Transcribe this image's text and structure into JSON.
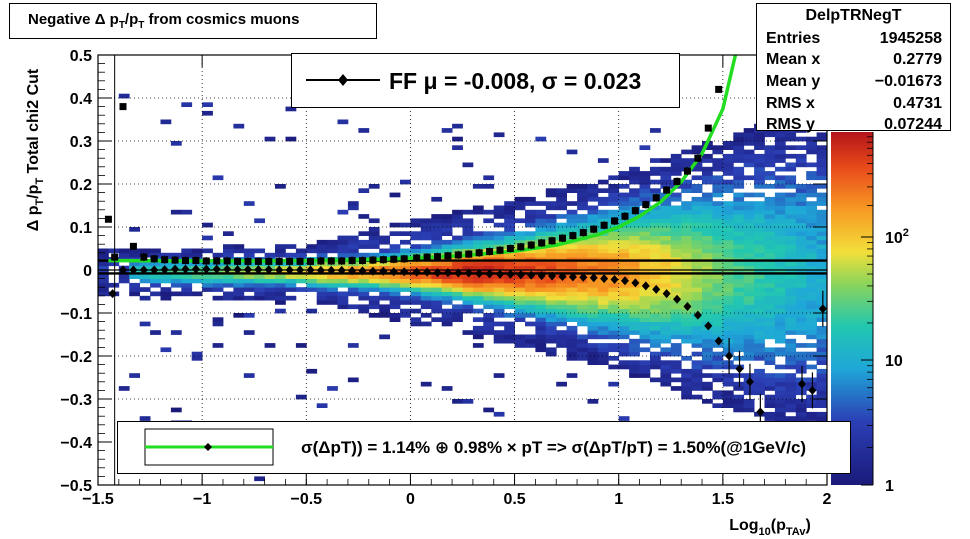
{
  "title": "Negative Δ p_T/p_T from cosmics muons",
  "stats": {
    "name": "DelpTRNegT",
    "rows": [
      {
        "key": "Entries",
        "value": "1945258"
      },
      {
        "key": "Mean x",
        "value": "0.2779"
      },
      {
        "key": "Mean y",
        "value": "−0.01673"
      },
      {
        "key": "RMS x",
        "value": "0.4731"
      },
      {
        "key": "RMS y",
        "value": "0.07244"
      }
    ]
  },
  "legend_top": {
    "text": "FF μ = -0.008, σ =   0.023"
  },
  "legend_bottom": {
    "text": "σ(ΔpT)) =  1.14% ⊕  0.98% × pT => σ(ΔpT/pT) =  1.50%(@1GeV/c)"
  },
  "colors": {
    "fit_line": "#22dd22",
    "markers": "#000000"
  },
  "chart_data": {
    "type": "heatmap",
    "title": "Negative Δ p_T/p_T from cosmics muons",
    "xlabel": "Log10(pTAv)",
    "ylabel": "Δ pT/pT  Total chi2 Cut",
    "xlim": [
      -1.5,
      2.0
    ],
    "ylim": [
      -0.5,
      0.5
    ],
    "x_ticks": [
      "−1.5",
      "−1",
      "−0.5",
      "0",
      "0.5",
      "1",
      "1.5",
      "2"
    ],
    "y_ticks": [
      "−0.5",
      "−0.4",
      "−0.3",
      "−0.2",
      "−0.1",
      "0",
      "0.1",
      "0.2",
      "0.3",
      "0.4",
      "0.5"
    ],
    "z_scale": "log",
    "z_ticks": [
      "1",
      "10",
      "10^2"
    ],
    "grid": true,
    "series": [
      {
        "kind": "points",
        "x": [
          -1.45,
          -1.42,
          -1.38,
          -1.33,
          -1.28,
          -1.23,
          -1.18,
          -1.13,
          -1.08,
          -1.03,
          -0.98,
          -0.93,
          -0.88,
          -0.83,
          -0.78,
          -0.73,
          -0.68,
          -0.63,
          -0.58,
          -0.53,
          -0.48,
          -0.43,
          -0.38,
          -0.33,
          -0.28,
          -0.23,
          -0.18,
          -0.13,
          -0.08,
          -0.03,
          0.03,
          0.08,
          0.13,
          0.18,
          0.23,
          0.28,
          0.33,
          0.38,
          0.43,
          0.48,
          0.53,
          0.58,
          0.63,
          0.68,
          0.73,
          0.78,
          0.83,
          0.88,
          0.93,
          0.98,
          1.03,
          1.08,
          1.13,
          1.18,
          1.23,
          1.28,
          1.33,
          1.38,
          1.43,
          1.48
        ],
        "y": [
          0.118,
          0.03,
          0.38,
          0.055,
          0.03,
          0.026,
          0.024,
          0.023,
          0.022,
          0.022,
          0.021,
          0.021,
          0.021,
          0.02,
          0.02,
          0.02,
          0.02,
          0.02,
          0.02,
          0.02,
          0.02,
          0.021,
          0.021,
          0.021,
          0.022,
          0.022,
          0.023,
          0.024,
          0.025,
          0.026,
          0.028,
          0.03,
          0.031,
          0.033,
          0.035,
          0.037,
          0.04,
          0.043,
          0.046,
          0.05,
          0.054,
          0.058,
          0.063,
          0.068,
          0.074,
          0.08,
          0.087,
          0.095,
          0.104,
          0.114,
          0.125,
          0.138,
          0.152,
          0.168,
          0.186,
          0.206,
          0.23,
          0.26,
          0.33,
          0.42
        ]
      },
      {
        "kind": "points",
        "x": [
          -1.43,
          -1.38,
          -1.33,
          -1.28,
          -1.23,
          -1.18,
          -1.13,
          -1.08,
          -1.03,
          -0.98,
          -0.93,
          -0.88,
          -0.83,
          -0.78,
          -0.73,
          -0.68,
          -0.63,
          -0.58,
          -0.53,
          -0.48,
          -0.43,
          -0.38,
          -0.33,
          -0.28,
          -0.23,
          -0.18,
          -0.13,
          -0.08,
          -0.03,
          0.03,
          0.08,
          0.13,
          0.18,
          0.23,
          0.28,
          0.33,
          0.38,
          0.43,
          0.48,
          0.53,
          0.58,
          0.63,
          0.68,
          0.73,
          0.78,
          0.83,
          0.88,
          0.93,
          0.98,
          1.03,
          1.08,
          1.13,
          1.18,
          1.23,
          1.28,
          1.33,
          1.38,
          1.43,
          1.48,
          1.53,
          1.58,
          1.63,
          1.68,
          1.88,
          1.93,
          1.98
        ],
        "y": [
          -0.055,
          0.0,
          0.0,
          0.0,
          0.0,
          0.001,
          0.002,
          0.002,
          0.002,
          0.002,
          0.002,
          0.002,
          0.001,
          0.001,
          0.001,
          0.001,
          0.0,
          0.0,
          0.0,
          0.0,
          -0.001,
          -0.001,
          -0.001,
          -0.002,
          -0.002,
          -0.003,
          -0.003,
          -0.004,
          -0.004,
          -0.005,
          -0.005,
          -0.006,
          -0.006,
          -0.007,
          -0.007,
          -0.008,
          -0.009,
          -0.01,
          -0.01,
          -0.011,
          -0.012,
          -0.013,
          -0.014,
          -0.015,
          -0.016,
          -0.017,
          -0.018,
          -0.02,
          -0.022,
          -0.025,
          -0.03,
          -0.037,
          -0.045,
          -0.055,
          -0.068,
          -0.085,
          -0.105,
          -0.13,
          -0.165,
          -0.2,
          -0.23,
          -0.26,
          -0.33,
          -0.265,
          -0.28,
          -0.09
        ]
      },
      {
        "kind": "fit",
        "x": [
          -1.45,
          -1.3,
          -1.1,
          -0.9,
          -0.7,
          -0.5,
          -0.3,
          -0.1,
          0.1,
          0.3,
          0.5,
          0.7,
          0.9,
          1.0,
          1.1,
          1.2,
          1.3,
          1.4,
          1.5,
          1.56
        ],
        "y": [
          0.0218,
          0.0216,
          0.0213,
          0.0211,
          0.0212,
          0.0218,
          0.0232,
          0.0256,
          0.0293,
          0.035,
          0.044,
          0.058,
          0.082,
          0.1,
          0.125,
          0.158,
          0.205,
          0.27,
          0.375,
          0.5
        ]
      }
    ],
    "horizontal_lines": [
      0.022,
      0.0,
      -0.008
    ]
  }
}
